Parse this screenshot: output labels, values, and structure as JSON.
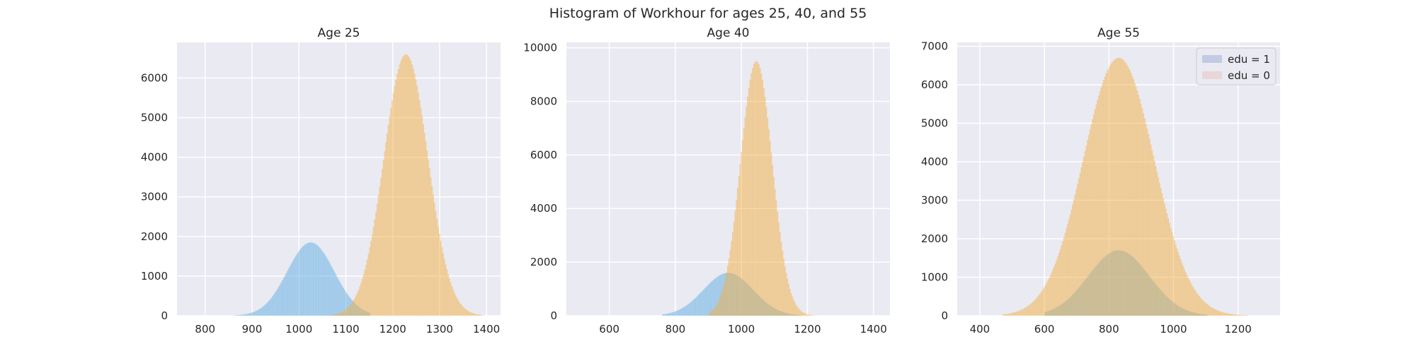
{
  "figure": {
    "suptitle": "Histogram of Workhour for ages 25, 40, and 55"
  },
  "colors": {
    "edu1": "#5dade2",
    "edu0": "#f5b041",
    "background": "#eaeaf2",
    "grid": "#ffffff",
    "legend_edu1_patch": "#c3cbe2",
    "legend_edu0_patch": "#e9d6d8"
  },
  "legend": {
    "placement": "upper right of third panel",
    "items": [
      {
        "label": "edu = 1",
        "color_key": "legend_edu1_patch"
      },
      {
        "label": "edu = 0",
        "color_key": "legend_edu0_patch"
      }
    ]
  },
  "chart_data": [
    {
      "type": "histogram",
      "title": "Age 25",
      "xlim": [
        740,
        1430
      ],
      "ylim": [
        0,
        6900
      ],
      "xticks": [
        800,
        900,
        1000,
        1100,
        1200,
        1300,
        1400
      ],
      "yticks": [
        0,
        1000,
        2000,
        3000,
        4000,
        5000,
        6000
      ],
      "grid": true,
      "series": [
        {
          "name": "edu = 1",
          "color_key": "edu1",
          "alpha": 0.45,
          "peak_x": 1025,
          "peak_count": 1850,
          "spread_sd": 50,
          "range": [
            860,
            1150
          ]
        },
        {
          "name": "edu = 0",
          "color_key": "edu0",
          "alpha": 0.45,
          "peak_x": 1228,
          "peak_count": 6600,
          "spread_sd": 47,
          "range": [
            1070,
            1390
          ]
        }
      ]
    },
    {
      "type": "histogram",
      "title": "Age 40",
      "xlim": [
        470,
        1450
      ],
      "ylim": [
        0,
        10200
      ],
      "xticks": [
        600,
        800,
        1000,
        1200,
        1400
      ],
      "yticks": [
        0,
        2000,
        4000,
        6000,
        8000,
        10000
      ],
      "grid": true,
      "series": [
        {
          "name": "edu = 1",
          "color_key": "edu1",
          "alpha": 0.45,
          "peak_x": 960,
          "peak_count": 1600,
          "spread_sd": 75,
          "range": [
            760,
            1180
          ]
        },
        {
          "name": "edu = 0",
          "color_key": "edu0",
          "alpha": 0.45,
          "peak_x": 1045,
          "peak_count": 9500,
          "spread_sd": 48,
          "range": [
            900,
            1230
          ]
        }
      ]
    },
    {
      "type": "histogram",
      "title": "Age 55",
      "xlim": [
        330,
        1330
      ],
      "ylim": [
        0,
        7100
      ],
      "xticks": [
        400,
        600,
        800,
        1000,
        1200
      ],
      "yticks": [
        0,
        1000,
        2000,
        3000,
        4000,
        5000,
        6000,
        7000
      ],
      "grid": true,
      "series": [
        {
          "name": "edu = 1",
          "color_key": "edu1",
          "alpha": 0.45,
          "peak_x": 830,
          "peak_count": 1700,
          "spread_sd": 95,
          "range": [
            600,
            1100
          ]
        },
        {
          "name": "edu = 0",
          "color_key": "edu0",
          "alpha": 0.45,
          "peak_x": 830,
          "peak_count": 6700,
          "spread_sd": 110,
          "range": [
            470,
            1230
          ]
        }
      ]
    }
  ]
}
